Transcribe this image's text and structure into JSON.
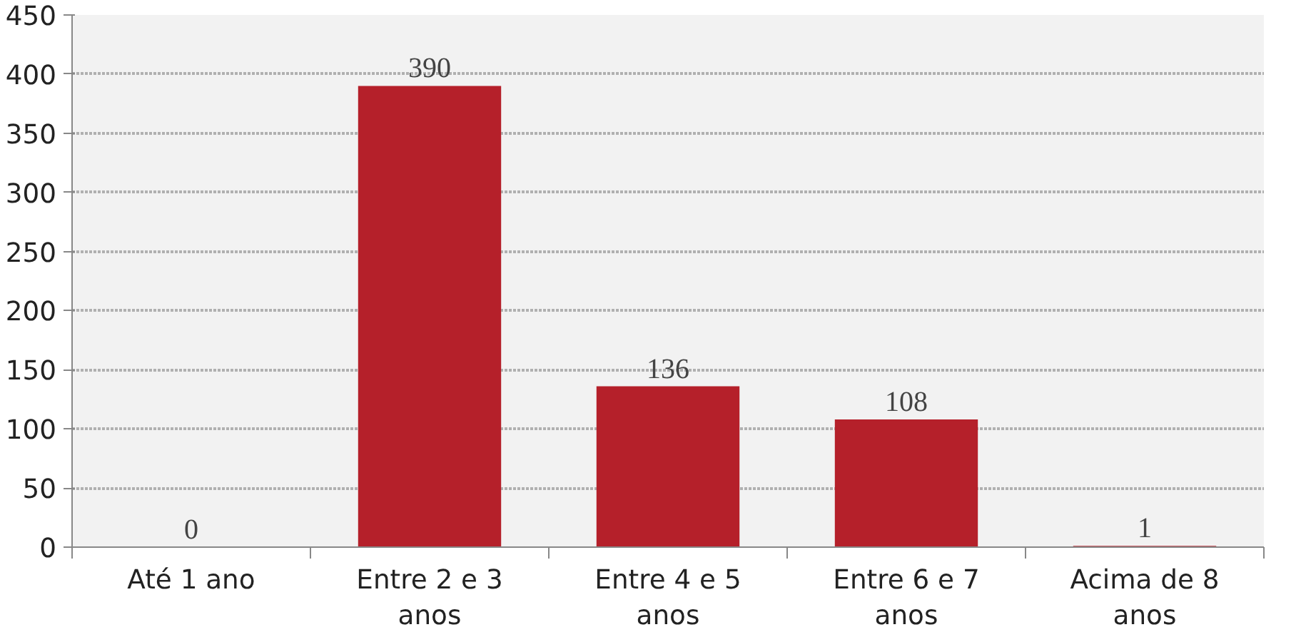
{
  "chart_data": {
    "type": "bar",
    "categories": [
      "Até 1 ano",
      "Entre 2 e 3 anos",
      "Entre 4 e 5 anos",
      "Entre 6 e 7 anos",
      "Acima de 8 anos"
    ],
    "values": [
      0,
      390,
      136,
      108,
      1
    ],
    "color": "#b5202a",
    "ylim": [
      0,
      450
    ],
    "yticks": [
      0,
      50,
      100,
      150,
      200,
      250,
      300,
      350,
      400,
      450
    ],
    "grid": "y",
    "data_labels": true
  }
}
